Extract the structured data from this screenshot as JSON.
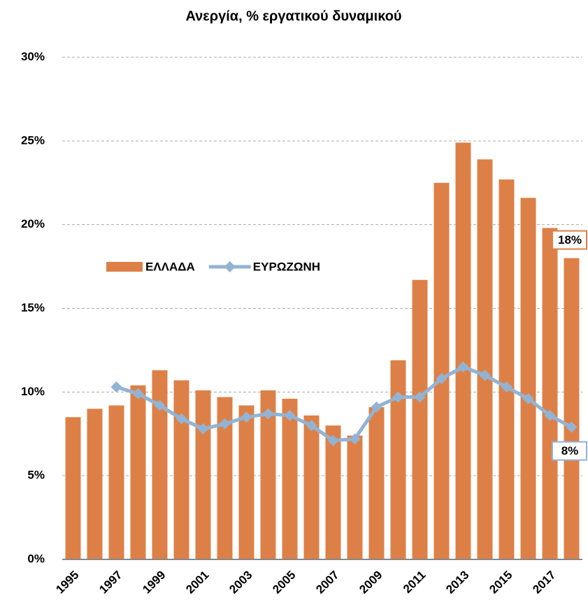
{
  "chart_data": {
    "type": "bar+line",
    "title": "Ανεργία, % εργατικού δυναμικού",
    "categories": [
      "1995",
      null,
      "1997",
      null,
      "1999",
      null,
      "2001",
      null,
      "2003",
      null,
      "2005",
      null,
      "2007",
      null,
      "2009",
      null,
      "2011",
      null,
      "2013",
      null,
      "2015",
      null,
      "2017",
      null
    ],
    "series": [
      {
        "name": "ΕΛΛΑΔΑ",
        "type": "bar",
        "color": "#dd8047",
        "values": [
          8.5,
          9.0,
          9.2,
          10.4,
          11.3,
          10.7,
          10.1,
          9.7,
          9.2,
          10.1,
          9.6,
          8.6,
          8.0,
          7.4,
          9.1,
          11.9,
          16.7,
          22.5,
          24.9,
          23.9,
          22.7,
          21.6,
          19.8,
          18.0
        ],
        "value_labels": [
          null,
          null,
          null,
          null,
          null,
          null,
          null,
          null,
          null,
          null,
          null,
          null,
          null,
          null,
          null,
          null,
          null,
          null,
          null,
          null,
          null,
          null,
          null,
          "18%"
        ]
      },
      {
        "name": "ΕΥΡΩΖΩΝΗ",
        "type": "line",
        "color": "#93b3d3",
        "values": [
          null,
          null,
          10.3,
          9.9,
          9.2,
          8.4,
          7.8,
          8.1,
          8.5,
          8.7,
          8.6,
          8.0,
          7.1,
          7.2,
          9.1,
          9.7,
          9.7,
          10.8,
          11.5,
          11.0,
          10.3,
          9.6,
          8.6,
          7.9
        ],
        "value_labels": [
          null,
          null,
          null,
          null,
          null,
          null,
          null,
          null,
          null,
          null,
          null,
          null,
          null,
          null,
          null,
          null,
          null,
          null,
          null,
          null,
          null,
          null,
          null,
          "8%"
        ]
      }
    ],
    "ylim": [
      0,
      30
    ],
    "yticks": [
      {
        "value": 0,
        "label": "0%"
      },
      {
        "value": 5,
        "label": "5%"
      },
      {
        "value": 10,
        "label": "10%"
      },
      {
        "value": 15,
        "label": "15%"
      },
      {
        "value": 20,
        "label": "20%"
      },
      {
        "value": 25,
        "label": "25%"
      },
      {
        "value": 30,
        "label": "30%"
      }
    ],
    "grid": true,
    "legend": "center-left"
  }
}
